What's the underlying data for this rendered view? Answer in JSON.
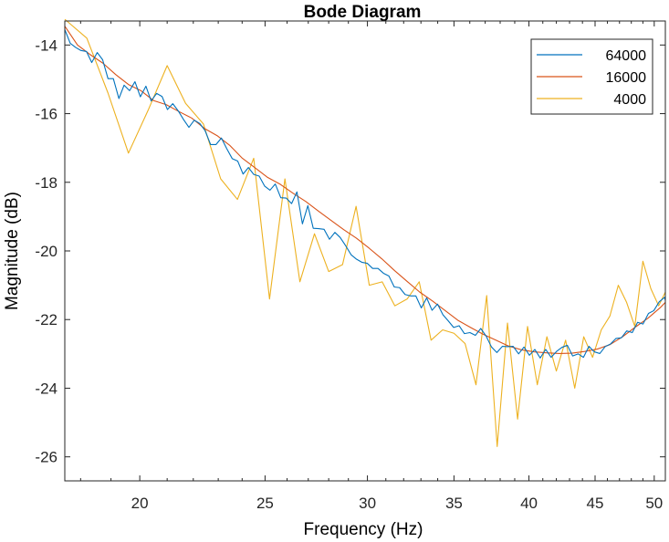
{
  "chart_data": {
    "type": "line",
    "title": "Bode Diagram",
    "xlabel": "Frequency  (Hz)",
    "ylabel": "Magnitude (dB)",
    "x_scale": "log",
    "xlim": [
      17.5,
      51
    ],
    "ylim": [
      -26.7,
      -13.3
    ],
    "x_ticks": [
      20,
      25,
      30,
      35,
      40,
      45,
      50
    ],
    "x_tick_labels": [
      "20",
      "25",
      "30",
      "35",
      "40",
      "45",
      "50"
    ],
    "y_ticks": [
      -26,
      -24,
      -22,
      -20,
      -18,
      -16,
      -14
    ],
    "y_tick_labels": [
      "-26",
      "-24",
      "-22",
      "-20",
      "-18",
      "-16",
      "-14"
    ],
    "grid": false,
    "legend_position": "top-right",
    "series": [
      {
        "name": "64000",
        "color": "#0072BD",
        "x": [
          17.5,
          17.67,
          17.84,
          18.01,
          18.19,
          18.36,
          18.54,
          18.72,
          18.9,
          19.08,
          19.27,
          19.45,
          19.64,
          19.83,
          20.02,
          20.22,
          20.41,
          20.61,
          20.81,
          21.01,
          21.21,
          21.42,
          21.62,
          21.83,
          22.04,
          22.26,
          22.47,
          22.69,
          22.91,
          23.13,
          23.35,
          23.58,
          23.81,
          24.04,
          24.27,
          24.5,
          24.74,
          24.98,
          25.22,
          25.46,
          25.71,
          25.96,
          26.21,
          26.46,
          26.72,
          26.98,
          27.24,
          27.5,
          27.77,
          28.04,
          28.31,
          28.58,
          28.86,
          29.14,
          29.42,
          29.7,
          29.99,
          30.28,
          30.57,
          30.87,
          31.17,
          31.47,
          31.77,
          32.08,
          32.39,
          32.7,
          33.02,
          33.34,
          33.66,
          33.99,
          34.32,
          34.65,
          34.98,
          35.32,
          35.66,
          36.01,
          36.36,
          36.71,
          37.06,
          37.42,
          37.78,
          38.15,
          38.52,
          38.89,
          39.27,
          39.65,
          40.03,
          40.42,
          40.81,
          41.21,
          41.61,
          42.01,
          42.42,
          42.83,
          43.24,
          43.66,
          44.08,
          44.51,
          44.94,
          45.38,
          45.81,
          46.26,
          46.71,
          47.16,
          47.61,
          48.08,
          48.54,
          49.01,
          49.49,
          49.96,
          50.45,
          50.94,
          51
        ],
        "values": [
          -13.55,
          -13.95,
          -14.07,
          -14.16,
          -14.19,
          -14.51,
          -14.22,
          -14.43,
          -14.98,
          -14.98,
          -15.56,
          -15.17,
          -15.33,
          -15.07,
          -15.51,
          -15.2,
          -15.63,
          -15.41,
          -15.5,
          -15.88,
          -15.71,
          -15.92,
          -16.17,
          -16.4,
          -16.19,
          -16.29,
          -16.5,
          -16.9,
          -16.9,
          -16.71,
          -17.02,
          -17.31,
          -17.38,
          -17.76,
          -17.57,
          -17.77,
          -17.82,
          -18.11,
          -18.23,
          -18.05,
          -18.45,
          -18.46,
          -18.62,
          -18.28,
          -19.21,
          -18.68,
          -19.34,
          -19.35,
          -19.37,
          -19.66,
          -19.46,
          -19.61,
          -19.85,
          -20.11,
          -20.24,
          -20.33,
          -20.36,
          -20.51,
          -20.51,
          -20.65,
          -20.73,
          -21.05,
          -21.07,
          -21.27,
          -21.31,
          -21.31,
          -21.66,
          -21.37,
          -21.73,
          -21.55,
          -21.86,
          -22.04,
          -22.23,
          -22.18,
          -22.41,
          -22.38,
          -22.46,
          -22.26,
          -22.48,
          -22.8,
          -22.96,
          -22.78,
          -22.79,
          -22.78,
          -23.0,
          -22.8,
          -23.04,
          -22.87,
          -23.12,
          -22.87,
          -23.1,
          -22.93,
          -22.81,
          -22.75,
          -23.06,
          -23.0,
          -23.1,
          -22.78,
          -22.94,
          -22.99,
          -22.79,
          -22.71,
          -22.55,
          -22.53,
          -22.33,
          -22.38,
          -22.08,
          -22.13,
          -21.82,
          -21.74,
          -21.48,
          -21.35,
          -21.45
        ]
      },
      {
        "name": "16000",
        "color": "#D95319",
        "x": [
          17.5,
          17.9,
          18.31,
          18.73,
          19.16,
          19.6,
          20.04,
          20.5,
          20.97,
          21.45,
          21.94,
          22.44,
          22.95,
          23.47,
          24.01,
          24.56,
          25.12,
          25.69,
          26.28,
          26.88,
          27.49,
          28.12,
          28.76,
          29.42,
          30.09,
          30.78,
          31.48,
          32.2,
          32.93,
          33.69,
          34.46,
          35.24,
          36.05,
          36.87,
          37.71,
          38.57,
          39.45,
          40.35,
          41.27,
          42.22,
          43.18,
          44.17,
          45.18,
          46.21,
          47.26,
          48.34,
          49.45,
          50.58,
          51
        ],
        "values": [
          -13.45,
          -14.0,
          -14.28,
          -14.53,
          -14.86,
          -15.15,
          -15.33,
          -15.62,
          -15.74,
          -15.94,
          -16.13,
          -16.43,
          -16.64,
          -16.92,
          -17.3,
          -17.58,
          -17.86,
          -18.06,
          -18.32,
          -18.56,
          -18.84,
          -19.11,
          -19.38,
          -19.63,
          -19.92,
          -20.23,
          -20.57,
          -20.89,
          -21.2,
          -21.46,
          -21.74,
          -22.02,
          -22.23,
          -22.43,
          -22.6,
          -22.77,
          -22.88,
          -22.94,
          -22.97,
          -22.99,
          -22.98,
          -22.93,
          -22.86,
          -22.73,
          -22.5,
          -22.22,
          -21.96,
          -21.64,
          -21.5
        ]
      },
      {
        "name": "4000",
        "color": "#EDB120",
        "x": [
          17.5,
          18.2,
          18.9,
          19.6,
          20.3,
          21.0,
          21.7,
          22.4,
          23.1,
          23.8,
          24.5,
          25.2,
          25.9,
          26.6,
          27.3,
          28.0,
          28.7,
          29.4,
          30.1,
          30.8,
          31.5,
          32.2,
          32.9,
          33.6,
          34.3,
          35.0,
          35.7,
          36.4,
          37.1,
          37.8,
          38.5,
          39.2,
          39.9,
          40.6,
          41.3,
          42.0,
          42.7,
          43.4,
          44.1,
          44.8,
          45.5,
          46.2,
          46.9,
          47.6,
          48.3,
          49.0,
          49.7,
          50.4,
          51
        ],
        "values": [
          -13.25,
          -13.8,
          -15.4,
          -17.15,
          -15.9,
          -14.6,
          -15.7,
          -16.3,
          -17.9,
          -18.5,
          -17.3,
          -21.4,
          -17.9,
          -20.9,
          -19.5,
          -20.6,
          -20.4,
          -18.7,
          -21.0,
          -20.9,
          -21.6,
          -21.4,
          -20.9,
          -22.6,
          -22.3,
          -22.4,
          -22.7,
          -23.9,
          -21.3,
          -25.7,
          -22.1,
          -24.9,
          -22.2,
          -23.9,
          -22.5,
          -23.5,
          -22.6,
          -24.0,
          -22.5,
          -23.1,
          -22.3,
          -21.9,
          -21.0,
          -21.5,
          -22.2,
          -20.3,
          -21.1,
          -21.6,
          -21.2
        ]
      }
    ]
  }
}
